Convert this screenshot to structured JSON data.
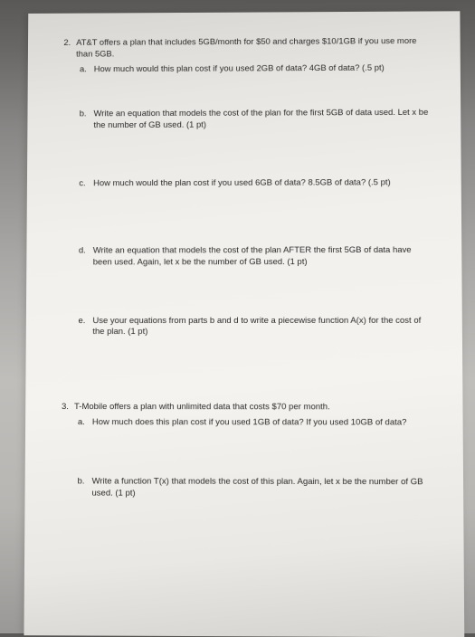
{
  "q2": {
    "num": "2.",
    "text": "AT&T offers a plan that includes 5GB/month for $50 and charges $10/1GB if you use more than 5GB.",
    "a": {
      "letter": "a.",
      "text": "How much would this plan cost if you used 2GB of data?  4GB of data?  (.5 pt)"
    },
    "b": {
      "letter": "b.",
      "text": "Write an equation that models the cost of the plan for the first 5GB of data used.  Let x be the number of GB used.  (1 pt)"
    },
    "c": {
      "letter": "c.",
      "text": "How much would the plan cost if you used 6GB of data?  8.5GB of data?  (.5 pt)"
    },
    "d": {
      "letter": "d.",
      "text": "Write an equation that models the cost of the plan AFTER the first 5GB of data have been used.  Again, let x be the number of GB used.  (1 pt)"
    },
    "e": {
      "letter": "e.",
      "text": "Use your equations from parts b and d to write a piecewise function A(x) for the cost of the plan.  (1 pt)"
    }
  },
  "q3": {
    "num": "3.",
    "text": "T-Mobile offers a plan with unlimited data that costs $70 per month.",
    "a": {
      "letter": "a.",
      "text": "How much does this plan cost if you used 1GB of data?  If you used 10GB of data?"
    },
    "b": {
      "letter": "b.",
      "text": "Write a function T(x) that models the cost of this plan.  Again, let x be the number of GB used.  (1 pt)"
    }
  }
}
